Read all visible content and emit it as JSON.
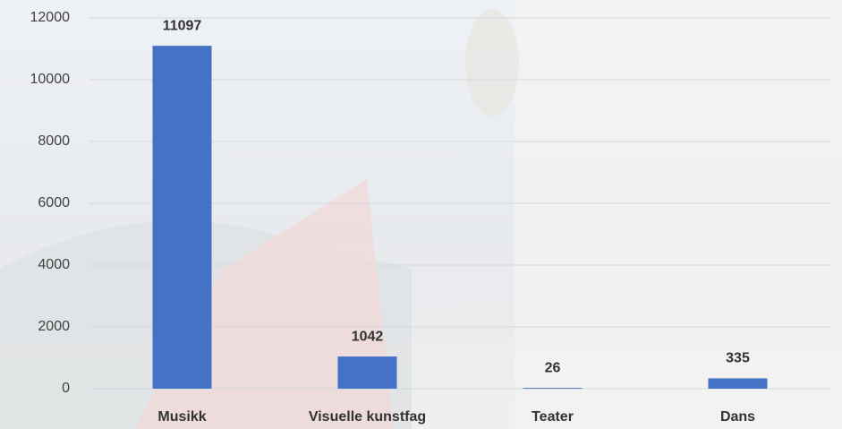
{
  "chart_data": {
    "type": "bar",
    "categories": [
      "Musikk",
      "Visuelle kunstfag",
      "Teater",
      "Dans"
    ],
    "values": [
      11097,
      1042,
      26,
      335
    ],
    "color": "#4472c4",
    "ylim": [
      0,
      12000
    ],
    "yticks": [
      0,
      2000,
      4000,
      6000,
      8000,
      10000,
      12000
    ],
    "grid": true
  }
}
